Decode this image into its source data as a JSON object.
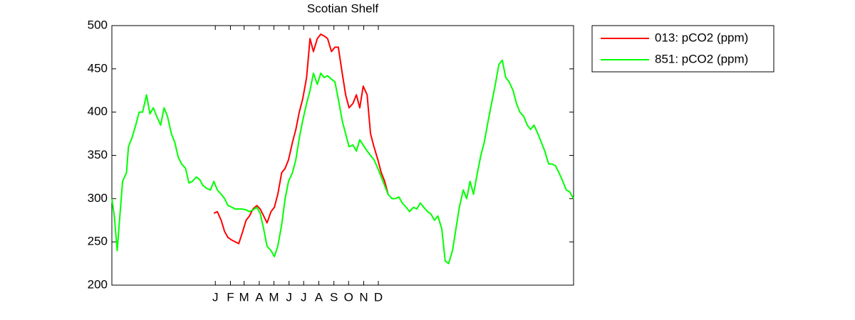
{
  "chart_data": {
    "type": "line",
    "title": "Scotian Shelf",
    "x": [
      -211,
      -206,
      -200,
      -196,
      -189,
      -181,
      -177,
      -170,
      -162,
      -155,
      -148,
      -140,
      -133,
      -126,
      -119,
      -111,
      -104,
      -97,
      -89,
      -82,
      -75,
      -68,
      -60,
      -53,
      -46,
      -38,
      -31,
      -24,
      -17,
      -9,
      -2,
      5,
      13,
      20,
      27,
      35,
      42,
      49,
      56,
      64,
      71,
      78,
      86,
      93,
      100,
      107,
      115,
      122,
      129,
      137,
      144,
      151,
      159,
      166,
      173,
      180,
      188,
      195,
      202,
      210,
      217,
      224,
      231,
      239,
      246,
      253,
      261,
      268,
      275,
      283,
      290,
      297,
      304,
      312,
      319,
      326,
      334,
      341,
      348,
      355,
      363,
      370,
      377,
      384,
      392,
      399,
      407,
      414,
      421,
      428,
      436,
      443,
      450,
      457,
      465,
      472,
      479,
      487,
      494,
      501,
      509,
      516,
      523,
      530,
      538,
      545,
      552,
      560,
      567,
      574,
      582,
      589,
      596,
      603,
      611,
      618,
      625,
      633,
      640,
      647,
      654,
      662,
      669,
      676,
      684,
      691,
      698,
      705,
      713,
      720,
      727,
      735
    ],
    "series": [
      {
        "name": "013: pCO2 (ppm)",
        "color": "#ff0000",
        "values": [
          null,
          null,
          null,
          null,
          null,
          null,
          null,
          null,
          null,
          null,
          null,
          null,
          null,
          null,
          null,
          null,
          null,
          null,
          null,
          null,
          null,
          null,
          null,
          null,
          null,
          null,
          null,
          null,
          null,
          null,
          283,
          285,
          275,
          262,
          255,
          252,
          250,
          248,
          260,
          275,
          280,
          288,
          292,
          288,
          280,
          272,
          285,
          290,
          305,
          330,
          335,
          345,
          365,
          380,
          400,
          415,
          440,
          485,
          470,
          485,
          490,
          488,
          485,
          470,
          475,
          475,
          445,
          420,
          405,
          410,
          420,
          405,
          430,
          420,
          375,
          360,
          345,
          330,
          320,
          305,
          null,
          null,
          null,
          null,
          null,
          null,
          null,
          null,
          null,
          null,
          null,
          null,
          null,
          null,
          null,
          null,
          null,
          null,
          null,
          null,
          null,
          null,
          null,
          null,
          null,
          null,
          null,
          null,
          null,
          null,
          null,
          null,
          null,
          null,
          null,
          null,
          null,
          null,
          null,
          null,
          null,
          null,
          null,
          null,
          null,
          null,
          null,
          null,
          null,
          null,
          null,
          null
        ]
      },
      {
        "name": "851: pCO2 (ppm)",
        "color": "#00ff00",
        "values": [
          300,
          280,
          240,
          270,
          320,
          330,
          360,
          370,
          385,
          400,
          400,
          420,
          398,
          405,
          395,
          385,
          405,
          395,
          375,
          365,
          348,
          340,
          335,
          318,
          320,
          325,
          322,
          315,
          312,
          310,
          320,
          310,
          305,
          300,
          292,
          290,
          288,
          288,
          288,
          287,
          285,
          287,
          290,
          283,
          265,
          245,
          240,
          233,
          245,
          270,
          300,
          320,
          330,
          345,
          370,
          390,
          410,
          425,
          445,
          432,
          445,
          440,
          442,
          438,
          435,
          415,
          390,
          375,
          360,
          362,
          355,
          368,
          362,
          355,
          350,
          345,
          335,
          325,
          315,
          305,
          300,
          300,
          302,
          295,
          290,
          285,
          290,
          288,
          295,
          290,
          285,
          282,
          275,
          280,
          265,
          228,
          225,
          240,
          265,
          290,
          310,
          300,
          320,
          305,
          330,
          350,
          365,
          390,
          410,
          430,
          455,
          460,
          440,
          435,
          425,
          410,
          400,
          395,
          385,
          380,
          385,
          375,
          365,
          355,
          340,
          340,
          338,
          330,
          320,
          310,
          308,
          300
        ]
      }
    ],
    "xlim": [
      -211,
      735
    ],
    "xticks": [
      {
        "value": 1,
        "label": "J"
      },
      {
        "value": 32,
        "label": "F"
      },
      {
        "value": 60,
        "label": "M"
      },
      {
        "value": 91,
        "label": "A"
      },
      {
        "value": 121,
        "label": "M"
      },
      {
        "value": 152,
        "label": "J"
      },
      {
        "value": 182,
        "label": "J"
      },
      {
        "value": 213,
        "label": "A"
      },
      {
        "value": 244,
        "label": "S"
      },
      {
        "value": 274,
        "label": "O"
      },
      {
        "value": 305,
        "label": "N"
      },
      {
        "value": 335,
        "label": "D"
      }
    ],
    "ylim": [
      200,
      500
    ],
    "yticks": [
      200,
      250,
      300,
      350,
      400,
      450,
      500
    ],
    "grid": false,
    "legend": "outside-top-right"
  }
}
